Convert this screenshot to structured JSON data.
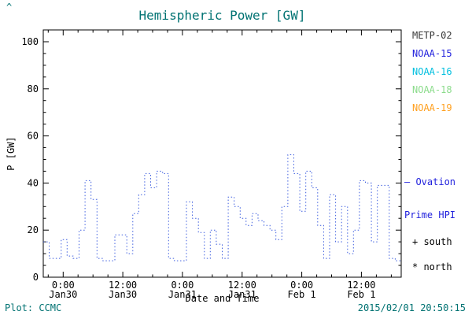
{
  "misc": {
    "corner_mark": "^"
  },
  "footer": {
    "credit": "Plot: CCMC",
    "timestamp": "2015/02/01 20:50:15"
  },
  "legend": {
    "items": [
      {
        "label": "METP-02",
        "color": "#3a3a3a"
      },
      {
        "label": "NOAA-15",
        "color": "#2222dd"
      },
      {
        "label": "NOAA-16",
        "color": "#00bfdf"
      },
      {
        "label": "NOAA-18",
        "color": "#8cdc8c"
      },
      {
        "label": "NOAA-19",
        "color": "#ffa020"
      }
    ]
  },
  "ovation_label": {
    "line1": "— Ovation",
    "line2": "Prime HPI",
    "color": "#2222dd"
  },
  "markers": {
    "south": "+ south",
    "north": "* north"
  },
  "colors": {
    "accent_teal": "#007272",
    "axis": "#000000"
  },
  "chart_data": {
    "type": "line",
    "title": "Hemispheric Power [GW]",
    "xlabel": "Date and Time",
    "ylabel": "P [GW]",
    "ylim": [
      0,
      105
    ],
    "yticks": [
      0,
      20,
      40,
      60,
      80,
      100
    ],
    "xlim": [
      -4,
      68
    ],
    "x_unit": "hours since Jan 30 00:00",
    "xticks": [
      {
        "x": 0,
        "time": "0:00",
        "date": "Jan30"
      },
      {
        "x": 12,
        "time": "12:00",
        "date": "Jan30"
      },
      {
        "x": 24,
        "time": "0:00",
        "date": "Jan31"
      },
      {
        "x": 36,
        "time": "12:00",
        "date": "Jan31"
      },
      {
        "x": 48,
        "time": "0:00",
        "date": "Feb 1"
      },
      {
        "x": 60,
        "time": "12:00",
        "date": "Feb 1"
      }
    ],
    "grid": false,
    "legend_position": "right-outside",
    "series": [
      {
        "name": "Ovation Prime HPI",
        "color": "#3f5fdf",
        "style": "dotted-step",
        "x": [
          -4,
          -2.8,
          -1.6,
          -0.4,
          0.8,
          2,
          3.2,
          4.4,
          5.6,
          6.8,
          8,
          9.2,
          10.4,
          11.6,
          12.8,
          14,
          15.2,
          16.4,
          17.6,
          18.8,
          20,
          21.2,
          22.4,
          23.6,
          24.8,
          26,
          27.2,
          28.4,
          29.6,
          30.8,
          32,
          33.2,
          34.4,
          35.6,
          36.8,
          38,
          39.2,
          40.4,
          41.6,
          42.8,
          44,
          45.2,
          46.4,
          47.6,
          48.8,
          50,
          51.2,
          52.4,
          53.6,
          54.8,
          56,
          57.2,
          58.4,
          59.6,
          60.8,
          62,
          63.2,
          64.4,
          65.6,
          66.8,
          68
        ],
        "y": [
          15,
          8,
          8,
          16,
          9,
          8,
          20,
          41,
          33,
          8,
          7,
          7,
          18,
          18,
          10,
          27,
          35,
          44,
          38,
          45,
          44,
          8,
          7,
          7,
          32,
          25,
          19,
          8,
          20,
          14,
          8,
          34,
          30,
          25,
          22,
          27,
          24,
          22,
          20,
          16,
          30,
          52,
          44,
          28,
          45,
          38,
          22,
          8,
          35,
          15,
          30,
          10,
          20,
          41,
          40,
          15,
          39,
          39,
          8,
          7,
          7
        ]
      }
    ]
  }
}
